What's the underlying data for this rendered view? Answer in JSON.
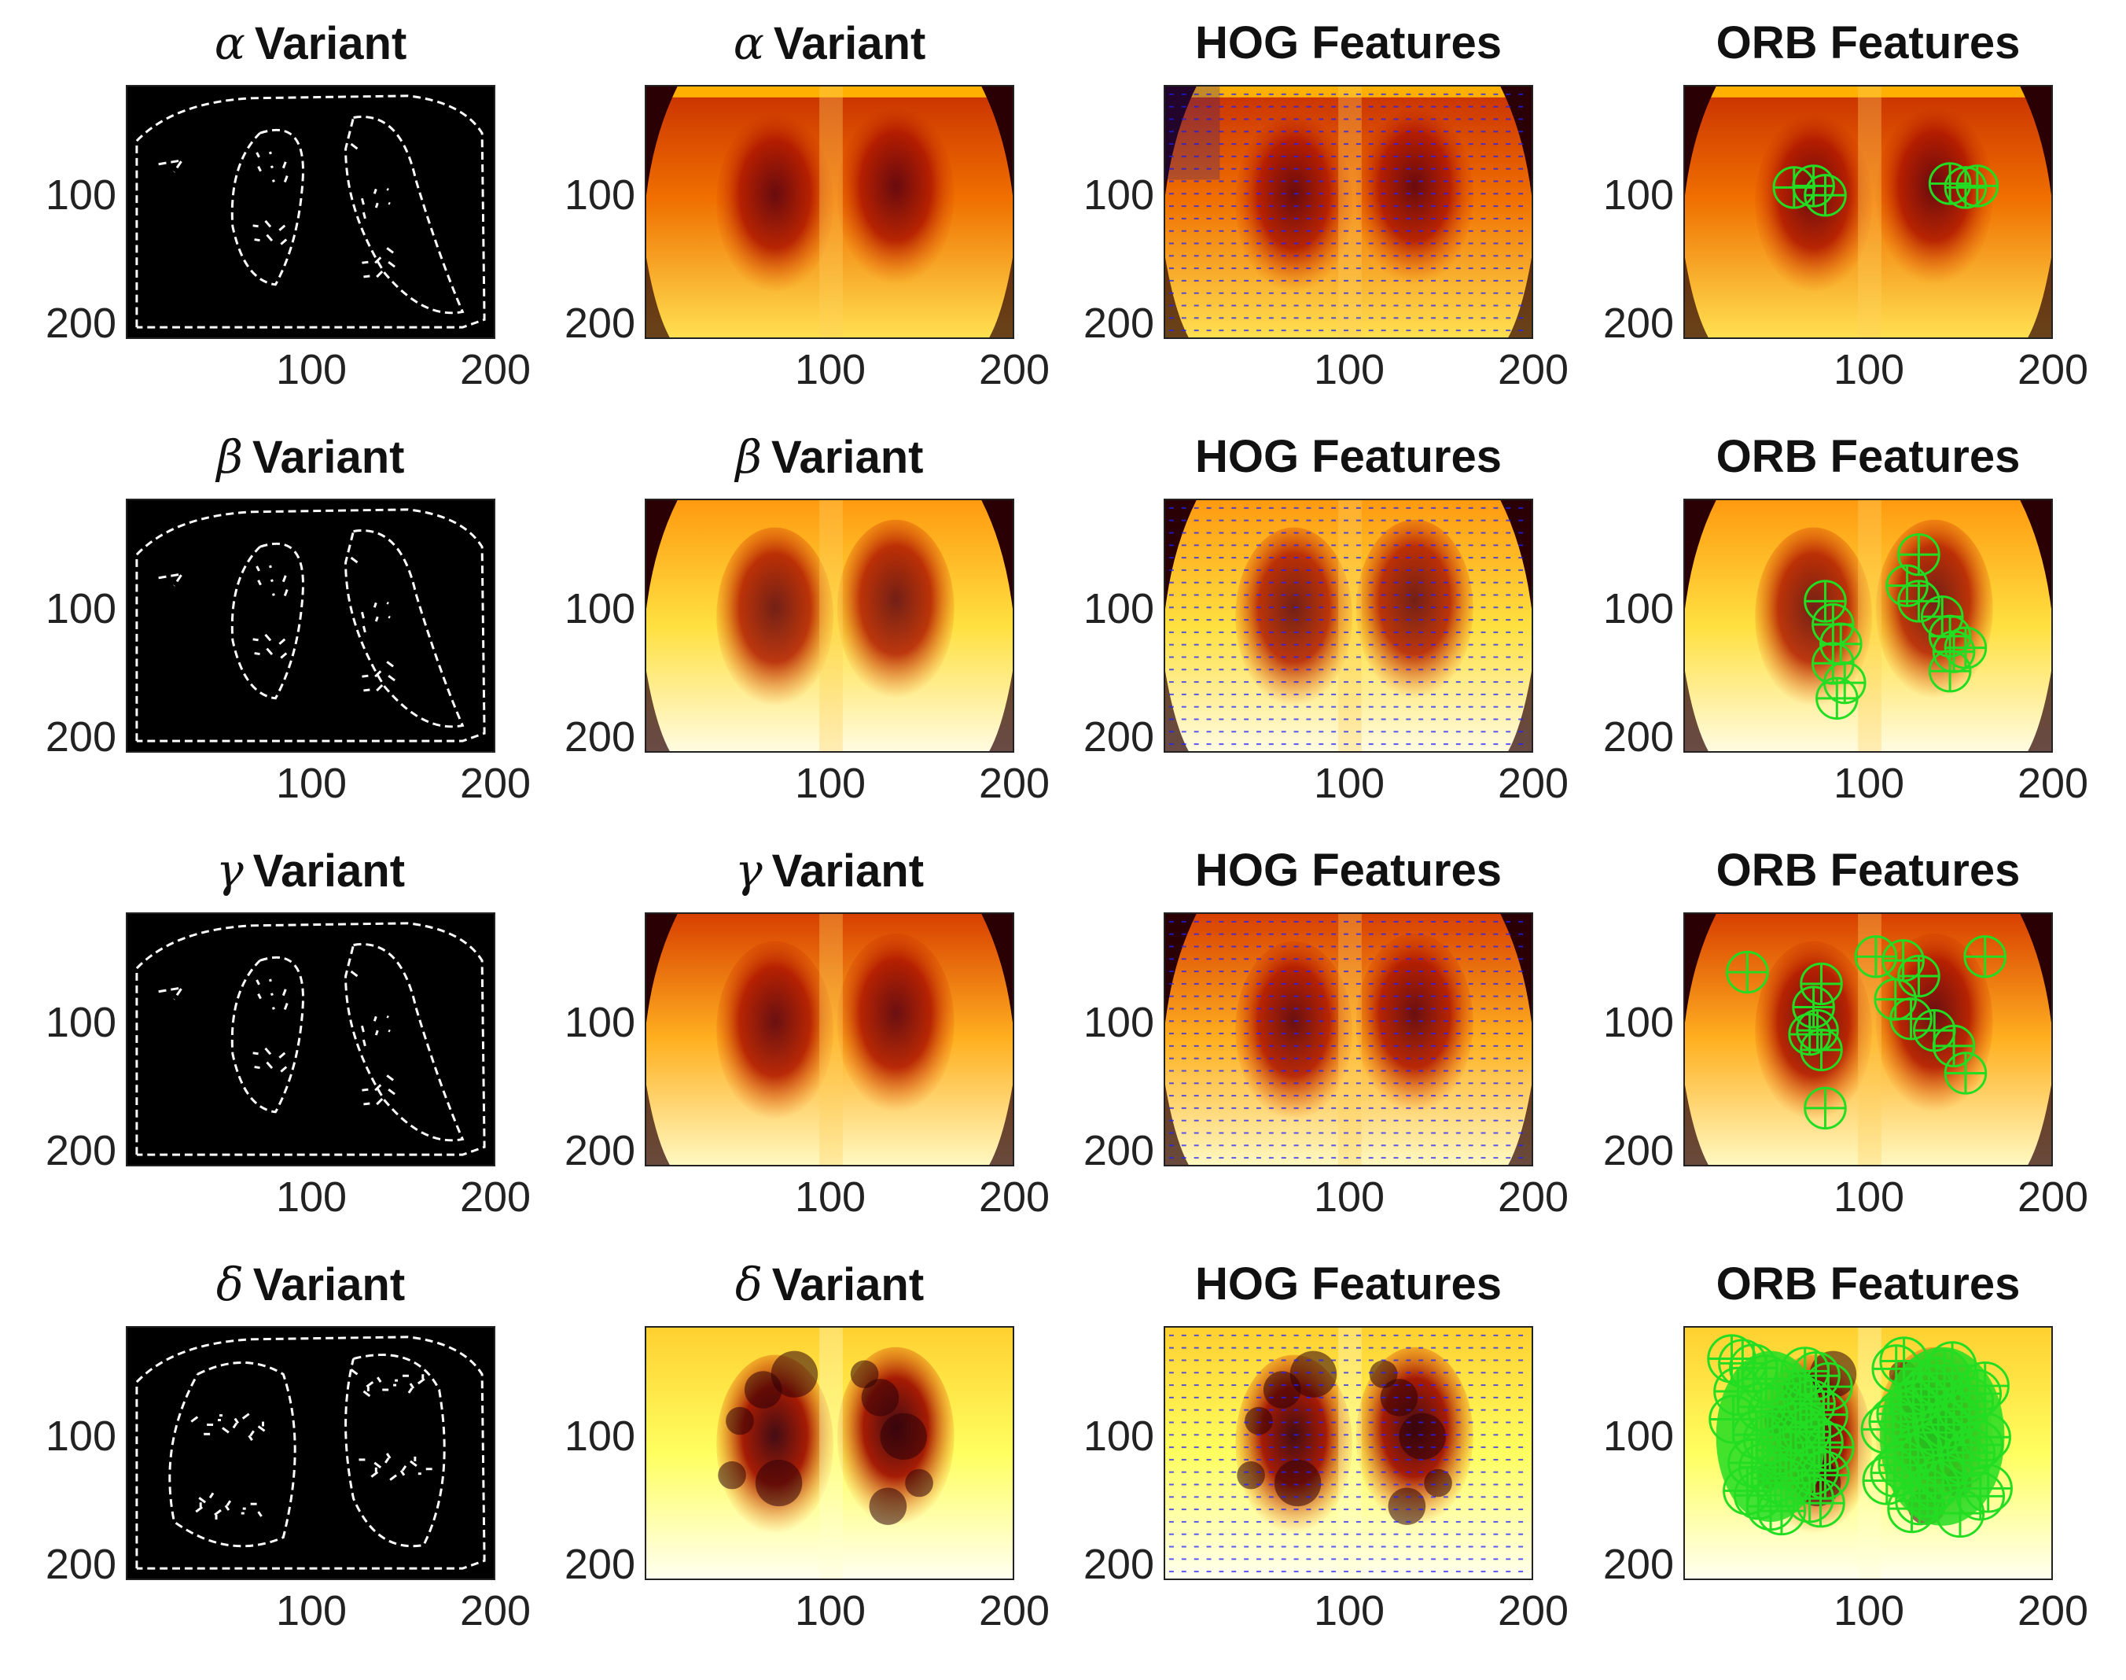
{
  "rows": [
    {
      "edge_title": "Variant",
      "edge_greek": "α",
      "heat_title": "Variant",
      "heat_greek": "α",
      "hog_title": "HOG Features",
      "orb_title": "ORB Features"
    },
    {
      "edge_title": "Variant",
      "edge_greek": "β",
      "heat_title": "Variant",
      "heat_greek": "β",
      "hog_title": "HOG Features",
      "orb_title": "ORB Features"
    },
    {
      "edge_title": "Variant",
      "edge_greek": "γ",
      "heat_title": "Variant",
      "heat_greek": "γ",
      "hog_title": "HOG Features",
      "orb_title": "ORB Features"
    },
    {
      "edge_title": "Variant",
      "edge_greek": "δ",
      "heat_title": "Variant",
      "heat_greek": "δ",
      "hog_title": "HOG Features",
      "orb_title": "ORB Features"
    }
  ],
  "axes": {
    "y_ticks": [
      "100",
      "200"
    ],
    "x_ticks": [
      "100",
      "200"
    ]
  },
  "colors": {
    "edge_bg": "#000000",
    "edge_line": "#ffffff",
    "heat_dark": "#3a0008",
    "heat_mid": "#e03000",
    "heat_light": "#ffff40",
    "hog_arrow": "#2020ff",
    "orb_marker": "#22dd22"
  },
  "orb_counts": [
    "few",
    "medium",
    "medium",
    "dense"
  ]
}
